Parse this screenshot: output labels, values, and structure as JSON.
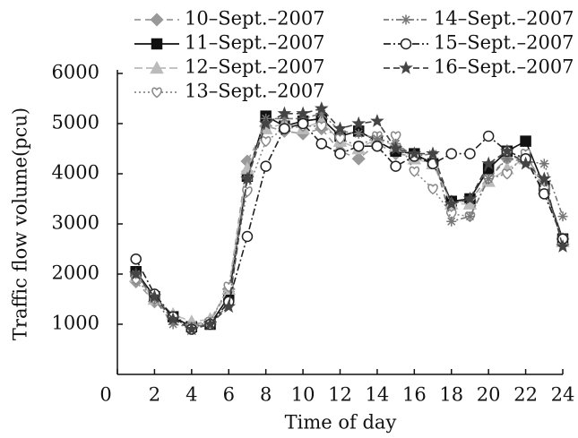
{
  "chart_data": {
    "type": "line",
    "xlabel": "Time of day",
    "ylabel": "Traffic flow volume(pcu)",
    "x": [
      1,
      2,
      3,
      4,
      5,
      6,
      7,
      8,
      9,
      10,
      11,
      12,
      13,
      14,
      15,
      16,
      17,
      18,
      19,
      20,
      21,
      22,
      23,
      24
    ],
    "xlim": [
      0,
      24
    ],
    "xticks": [
      0,
      2,
      4,
      6,
      8,
      10,
      12,
      14,
      16,
      18,
      20,
      22,
      24
    ],
    "ylim": [
      0,
      6000
    ],
    "yticks": [
      1000,
      2000,
      3000,
      4000,
      5000,
      6000
    ],
    "series": [
      {
        "name": "10–Sept.–2007",
        "color": "#999999",
        "marker": "diamond",
        "dash": "7 5",
        "values": [
          1850,
          1450,
          1150,
          1000,
          1050,
          1700,
          4250,
          4950,
          4850,
          4800,
          4900,
          4450,
          4300,
          4600,
          4400,
          4350,
          4250,
          3450,
          3450,
          3950,
          4300,
          4350,
          3800,
          2700
        ]
      },
      {
        "name": "11–Sept.–2007",
        "color": "#111111",
        "marker": "square",
        "dash": "none",
        "values": [
          2050,
          1550,
          1150,
          950,
          1000,
          1550,
          3950,
          5150,
          4950,
          5050,
          5100,
          4750,
          4850,
          4650,
          4450,
          4400,
          4200,
          3450,
          3500,
          4100,
          4450,
          4650,
          3750,
          2700
        ]
      },
      {
        "name": "12–Sept.–2007",
        "color": "#bbbbbb",
        "marker": "triangle",
        "dash": "9 4",
        "values": [
          1950,
          1500,
          1200,
          1050,
          1100,
          1700,
          4100,
          4900,
          5000,
          4900,
          5050,
          4650,
          4500,
          4700,
          4550,
          4300,
          4200,
          3400,
          3400,
          3850,
          4100,
          4300,
          3700,
          2650
        ]
      },
      {
        "name": "13–Sept.–2007",
        "color": "#888888",
        "marker": "heart",
        "dash": "2 3",
        "values": [
          1900,
          1500,
          1100,
          950,
          1050,
          1750,
          3650,
          4650,
          4900,
          4950,
          4950,
          4700,
          4550,
          4750,
          4750,
          4050,
          3700,
          3200,
          3150,
          3900,
          4000,
          4400,
          3700,
          2700
        ]
      },
      {
        "name": "14–Sept.–2007",
        "color": "#777777",
        "marker": "asterisk",
        "dash": "6 3 2 3",
        "values": [
          2000,
          1500,
          1000,
          950,
          1000,
          1400,
          3900,
          5100,
          5100,
          5100,
          5200,
          4850,
          4800,
          4700,
          4600,
          4350,
          4400,
          3050,
          3150,
          3900,
          4300,
          4250,
          4200,
          3150
        ]
      },
      {
        "name": "15–Sept.–2007",
        "color": "#222222",
        "marker": "circle",
        "dash": "8 3 2 3",
        "values": [
          2300,
          1600,
          1150,
          900,
          1000,
          1450,
          2750,
          4150,
          4900,
          5000,
          4600,
          4400,
          4550,
          4550,
          4150,
          4350,
          4200,
          4400,
          4400,
          4750,
          4450,
          4300,
          3600,
          2700
        ]
      },
      {
        "name": "16–Sept.–2007",
        "color": "#444444",
        "marker": "star",
        "dash": "7 4",
        "values": [
          2000,
          1550,
          1100,
          900,
          1000,
          1350,
          3900,
          5000,
          5200,
          5200,
          5300,
          4900,
          5000,
          5050,
          4500,
          4400,
          4400,
          3400,
          3500,
          4200,
          4450,
          4200,
          3900,
          2550
        ]
      }
    ]
  }
}
